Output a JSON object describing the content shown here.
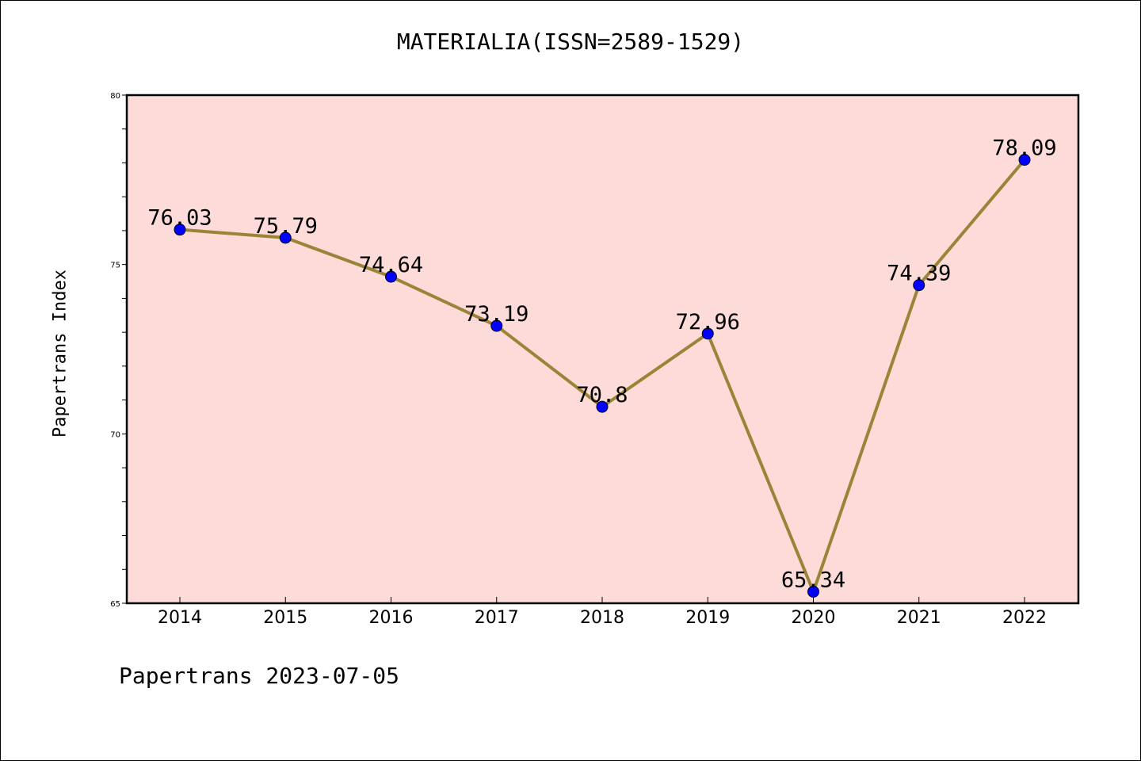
{
  "chart_data": {
    "type": "line",
    "title": "MATERIALIA(ISSN=2589-1529)",
    "xlabel": "",
    "ylabel": "Papertrans Index",
    "categories": [
      "2014",
      "2015",
      "2016",
      "2017",
      "2018",
      "2019",
      "2020",
      "2021",
      "2022"
    ],
    "values": [
      76.03,
      75.79,
      74.64,
      73.19,
      70.8,
      72.96,
      65.34,
      74.39,
      78.09
    ],
    "data_labels": [
      "76.03",
      "75.79",
      "74.64",
      "73.19",
      "70.8",
      "72.96",
      "65.34",
      "74.39",
      "78.09"
    ],
    "ylim": [
      65,
      80
    ],
    "yticks": [
      65,
      70,
      75,
      80
    ],
    "ytick_labels": [
      "65",
      "70",
      "75",
      "80"
    ],
    "grid": false,
    "legend": "none",
    "colors": {
      "plot_background": "#fddbd8",
      "line": "#9a8437",
      "marker": "#0000ff"
    }
  },
  "footer": {
    "note": "Papertrans 2023-07-05"
  }
}
